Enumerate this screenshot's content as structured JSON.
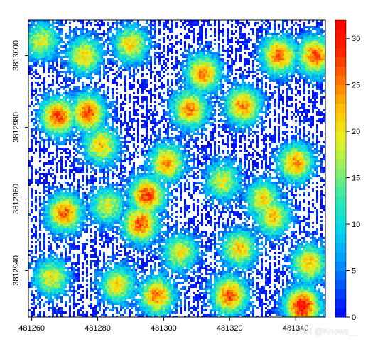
{
  "chart_data": {
    "type": "heatmap",
    "title": "",
    "xlabel": "",
    "ylabel": "",
    "x_ticks": [
      "481260",
      "481280",
      "481300",
      "481320",
      "481340"
    ],
    "y_ticks": [
      "3812940",
      "3812960",
      "3812980",
      "3813000"
    ],
    "x_tick_values": [
      481260,
      481280,
      481300,
      481320,
      481340
    ],
    "y_tick_values": [
      3812940,
      3812960,
      3812980,
      3813000
    ],
    "xlim": [
      481259,
      481349
    ],
    "ylim": [
      3812927,
      3813010
    ],
    "colorbar": {
      "min": 0,
      "max": 32,
      "ticks": [
        "0",
        "5",
        "10",
        "15",
        "20",
        "25",
        "30"
      ],
      "tick_values": [
        0,
        5,
        10,
        15,
        20,
        25,
        30
      ],
      "colors": [
        "#0000ff",
        "#0050ff",
        "#00a0ff",
        "#00d8e8",
        "#30e8b0",
        "#90f060",
        "#e8f020",
        "#ffc000",
        "#ff7000",
        "#ff2000",
        "#ff0000"
      ]
    },
    "hotspots": [
      {
        "x": 481268,
        "y": 3812983,
        "value": 27
      },
      {
        "x": 481277,
        "y": 3812984,
        "value": 27
      },
      {
        "x": 481295,
        "y": 3812961,
        "value": 28
      },
      {
        "x": 481293,
        "y": 3812953,
        "value": 27
      },
      {
        "x": 481312,
        "y": 3812995,
        "value": 25
      },
      {
        "x": 481308,
        "y": 3812985,
        "value": 25
      },
      {
        "x": 481324,
        "y": 3812986,
        "value": 25
      },
      {
        "x": 481335,
        "y": 3813000,
        "value": 26
      },
      {
        "x": 481346,
        "y": 3813000,
        "value": 27
      },
      {
        "x": 481270,
        "y": 3812956,
        "value": 26
      },
      {
        "x": 481281,
        "y": 3812975,
        "value": 22
      },
      {
        "x": 481301,
        "y": 3812970,
        "value": 24
      },
      {
        "x": 481340,
        "y": 3812970,
        "value": 24
      },
      {
        "x": 481320,
        "y": 3812933,
        "value": 27
      },
      {
        "x": 481342,
        "y": 3812930,
        "value": 31
      },
      {
        "x": 481298,
        "y": 3812933,
        "value": 25
      },
      {
        "x": 481266,
        "y": 3812938,
        "value": 20
      },
      {
        "x": 481286,
        "y": 3812936,
        "value": 21
      },
      {
        "x": 481323,
        "y": 3812946,
        "value": 22
      },
      {
        "x": 481333,
        "y": 3812955,
        "value": 22
      },
      {
        "x": 481276,
        "y": 3813000,
        "value": 21
      },
      {
        "x": 481290,
        "y": 3813003,
        "value": 21
      },
      {
        "x": 481263,
        "y": 3813004,
        "value": 19
      },
      {
        "x": 481330,
        "y": 3812960,
        "value": 21
      },
      {
        "x": 481305,
        "y": 3812945,
        "value": 20
      },
      {
        "x": 481344,
        "y": 3812942,
        "value": 22
      },
      {
        "x": 481318,
        "y": 3812965,
        "value": 19
      },
      {
        "x": 481283,
        "y": 3812958,
        "value": 19
      }
    ]
  },
  "watermark": {
    "text": "CSDN @Knows__"
  }
}
